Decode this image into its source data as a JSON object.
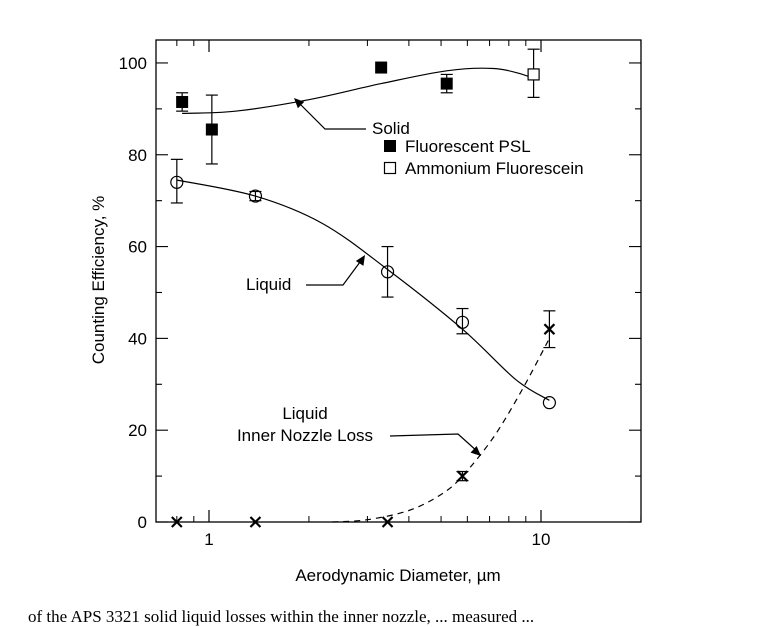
{
  "chart_data": {
    "type": "scatter",
    "title": "",
    "xlabel": "Aerodynamic Diameter, µm",
    "ylabel": "Counting Efficiency, %",
    "x_scale": "log",
    "xlim": [
      0.75,
      20
    ],
    "ylim": [
      0,
      105
    ],
    "x_ticks": [
      {
        "value": 1,
        "label": "1"
      },
      {
        "value": 10,
        "label": "10"
      }
    ],
    "y_ticks": [
      {
        "value": 0,
        "label": "0"
      },
      {
        "value": 20,
        "label": "20"
      },
      {
        "value": 40,
        "label": "40"
      },
      {
        "value": 60,
        "label": "60"
      },
      {
        "value": 80,
        "label": "80"
      },
      {
        "value": 100,
        "label": "100"
      }
    ],
    "grid": false,
    "series": [
      {
        "name": "Fluorescent PSL",
        "marker": "filled-square",
        "points": [
          {
            "x": 0.83,
            "y": 91.5,
            "err_low": 89.5,
            "err_high": 93.5
          },
          {
            "x": 1.02,
            "y": 85.5,
            "err_low": 78,
            "err_high": 93
          },
          {
            "x": 3.3,
            "y": 99
          },
          {
            "x": 5.2,
            "y": 95.5,
            "err_low": 93.5,
            "err_high": 97.5
          }
        ]
      },
      {
        "name": "Ammonium Fluorescein",
        "marker": "open-square",
        "points": [
          {
            "x": 9.5,
            "y": 97.5,
            "err_low": 92.5,
            "err_high": 103
          }
        ]
      },
      {
        "marker": "open-circle",
        "points": [
          {
            "x": 0.8,
            "y": 74,
            "err_low": 69.5,
            "err_high": 79
          },
          {
            "x": 1.38,
            "y": 71,
            "err_low": 70,
            "err_high": 72
          },
          {
            "x": 3.45,
            "y": 54.5,
            "err_low": 49,
            "err_high": 60
          },
          {
            "x": 5.8,
            "y": 43.5,
            "err_low": 41,
            "err_high": 46.5
          },
          {
            "x": 10.6,
            "y": 26
          }
        ]
      },
      {
        "marker": "x",
        "points": [
          {
            "x": 0.8,
            "y": 0
          },
          {
            "x": 1.38,
            "y": 0
          },
          {
            "x": 3.45,
            "y": 0
          },
          {
            "x": 5.8,
            "y": 10,
            "err_low": 9,
            "err_high": 11
          },
          {
            "x": 10.6,
            "y": 42,
            "err_low": 38,
            "err_high": 46
          }
        ]
      }
    ],
    "curves": [
      {
        "label": "Solid",
        "style": "solid",
        "points": [
          [
            0.83,
            89
          ],
          [
            1.2,
            89.5
          ],
          [
            2,
            92
          ],
          [
            3.3,
            95.5
          ],
          [
            5.2,
            98.3
          ],
          [
            7.2,
            98.8
          ],
          [
            8.8,
            97.5
          ],
          [
            9.5,
            96.5
          ]
        ]
      },
      {
        "label": "Liquid",
        "style": "solid",
        "points": [
          [
            0.8,
            74.5
          ],
          [
            1.38,
            71
          ],
          [
            2.2,
            65
          ],
          [
            3.45,
            55
          ],
          [
            5.8,
            42
          ],
          [
            8.4,
            31
          ],
          [
            10.6,
            26.5
          ]
        ]
      },
      {
        "label": "Liquid Inner Nozzle Loss",
        "style": "dashed",
        "points": [
          [
            2.35,
            0
          ],
          [
            3.0,
            0.5
          ],
          [
            4.0,
            2.5
          ],
          [
            5.0,
            6
          ],
          [
            5.8,
            10
          ],
          [
            7.2,
            18.5
          ],
          [
            8.8,
            29
          ],
          [
            10.6,
            40
          ]
        ]
      }
    ],
    "legend": {
      "placement": "top-right",
      "entries": [
        {
          "label": "Fluorescent PSL",
          "marker": "filled-square"
        },
        {
          "label": "Ammonium Fluorescein",
          "marker": "open-square"
        }
      ]
    },
    "annotations": [
      {
        "text": "Solid",
        "points_to": "solid curve"
      },
      {
        "text": "Liquid",
        "points_to": "liquid curve"
      },
      {
        "lines": [
          "Liquid",
          "Inner Nozzle Loss"
        ],
        "points_to": "dashed curve"
      }
    ]
  },
  "caption": {
    "text": "of the APS 3321 solid liquid losses within the inner nozzle, ... measured ..."
  }
}
